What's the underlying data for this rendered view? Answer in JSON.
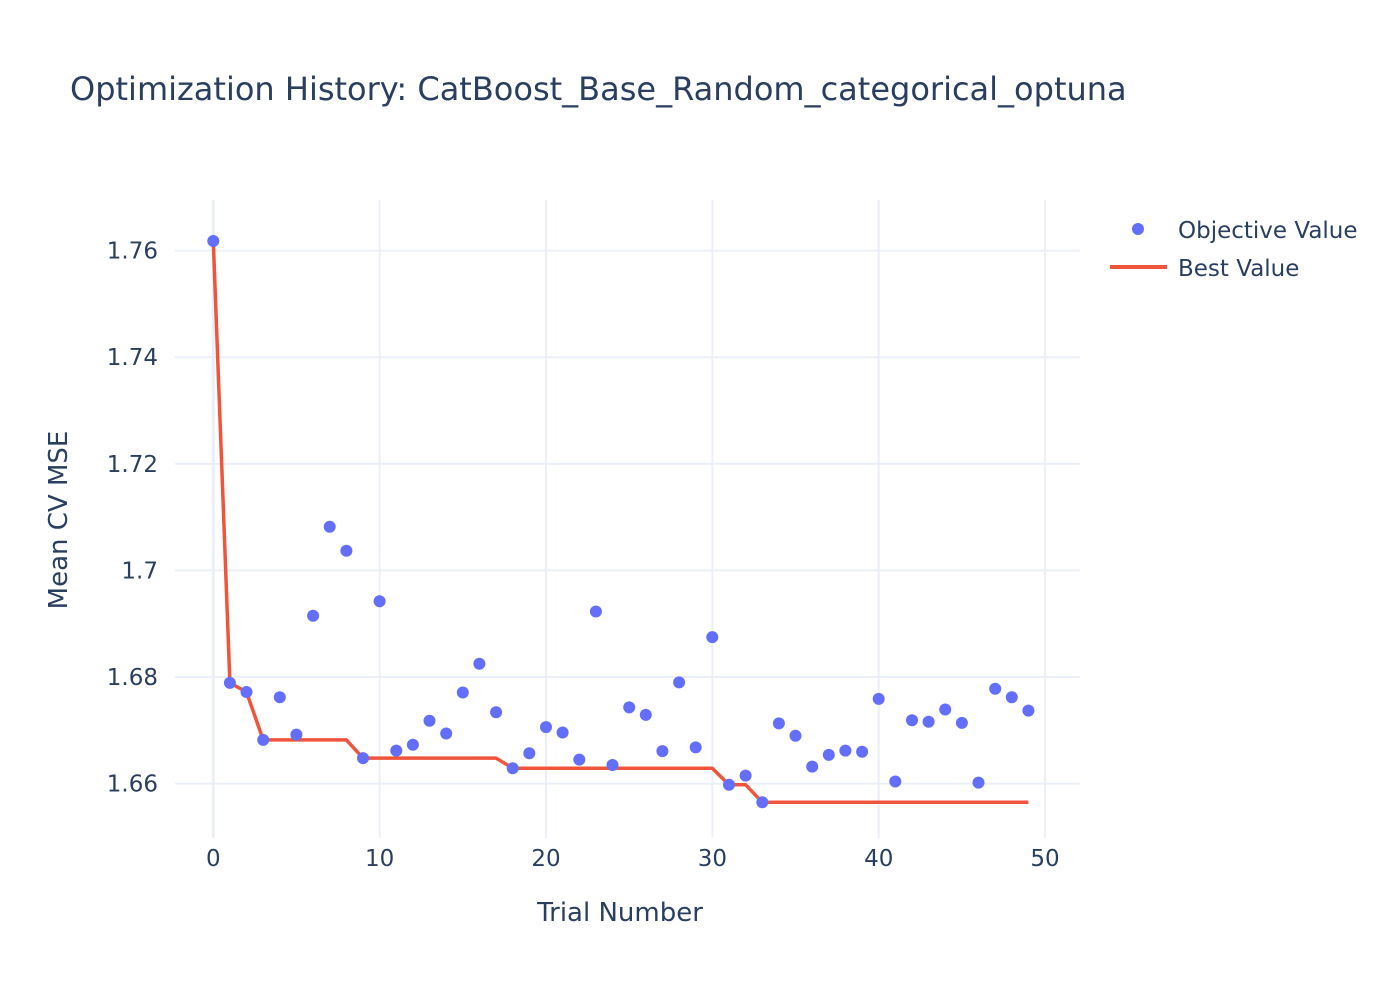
{
  "chart_data": {
    "type": "scatter",
    "title": "Optimization History: CatBoost_Base_Random_categorical_optuna",
    "xlabel": "Trial Number",
    "ylabel": "Mean CV MSE",
    "xlim": [
      -2.3,
      52.1
    ],
    "ylim": [
      1.6498,
      1.7695
    ],
    "x_ticks": [
      0,
      10,
      20,
      30,
      40,
      50
    ],
    "x_tick_labels": [
      "0",
      "10",
      "20",
      "30",
      "40",
      "50"
    ],
    "y_ticks": [
      1.66,
      1.68,
      1.7,
      1.72,
      1.74,
      1.76
    ],
    "y_tick_labels": [
      "1.66",
      "1.68",
      "1.7",
      "1.72",
      "1.74",
      "1.76"
    ],
    "grid": true,
    "legend_position": "top-right outside",
    "series": [
      {
        "name": "Objective Value",
        "kind": "markers",
        "color": "#636efa",
        "x": [
          0,
          1,
          2,
          3,
          4,
          5,
          6,
          7,
          8,
          9,
          10,
          11,
          12,
          13,
          14,
          15,
          16,
          17,
          18,
          19,
          20,
          21,
          22,
          23,
          24,
          25,
          26,
          27,
          28,
          29,
          30,
          31,
          32,
          33,
          34,
          35,
          36,
          37,
          38,
          39,
          40,
          41,
          42,
          43,
          44,
          45,
          46,
          47,
          48,
          49
        ],
        "y": [
          1.7618,
          1.6789,
          1.6772,
          1.6682,
          1.6762,
          1.6692,
          1.6915,
          1.7082,
          1.7037,
          1.6648,
          1.6942,
          1.6662,
          1.6673,
          1.6718,
          1.6694,
          1.6771,
          1.6825,
          1.6734,
          1.6629,
          1.6657,
          1.6706,
          1.6696,
          1.6645,
          1.6923,
          1.6635,
          1.6743,
          1.6729,
          1.6661,
          1.679,
          1.6668,
          1.6875,
          1.6598,
          1.6615,
          1.6565,
          1.6713,
          1.669,
          1.6632,
          1.6654,
          1.6662,
          1.666,
          1.6759,
          1.6604,
          1.6719,
          1.6716,
          1.6739,
          1.6714,
          1.6602,
          1.6778,
          1.6762,
          1.6737
        ]
      },
      {
        "name": "Best Value",
        "kind": "line",
        "color": "#ef553b",
        "x": [
          0,
          1,
          2,
          3,
          4,
          5,
          6,
          7,
          8,
          9,
          10,
          11,
          12,
          13,
          14,
          15,
          16,
          17,
          18,
          19,
          20,
          21,
          22,
          23,
          24,
          25,
          26,
          27,
          28,
          29,
          30,
          31,
          32,
          33,
          34,
          35,
          36,
          37,
          38,
          39,
          40,
          41,
          42,
          43,
          44,
          45,
          46,
          47,
          48,
          49
        ],
        "y": [
          1.7618,
          1.6789,
          1.6772,
          1.6682,
          1.6682,
          1.6682,
          1.6682,
          1.6682,
          1.6682,
          1.6648,
          1.6648,
          1.6648,
          1.6648,
          1.6648,
          1.6648,
          1.6648,
          1.6648,
          1.6648,
          1.6629,
          1.6629,
          1.6629,
          1.6629,
          1.6629,
          1.6629,
          1.6629,
          1.6629,
          1.6629,
          1.6629,
          1.6629,
          1.6629,
          1.6629,
          1.6598,
          1.6598,
          1.6565,
          1.6565,
          1.6565,
          1.6565,
          1.6565,
          1.6565,
          1.6565,
          1.6565,
          1.6565,
          1.6565,
          1.6565,
          1.6565,
          1.6565,
          1.6565,
          1.6565,
          1.6565,
          1.6565
        ]
      }
    ]
  }
}
